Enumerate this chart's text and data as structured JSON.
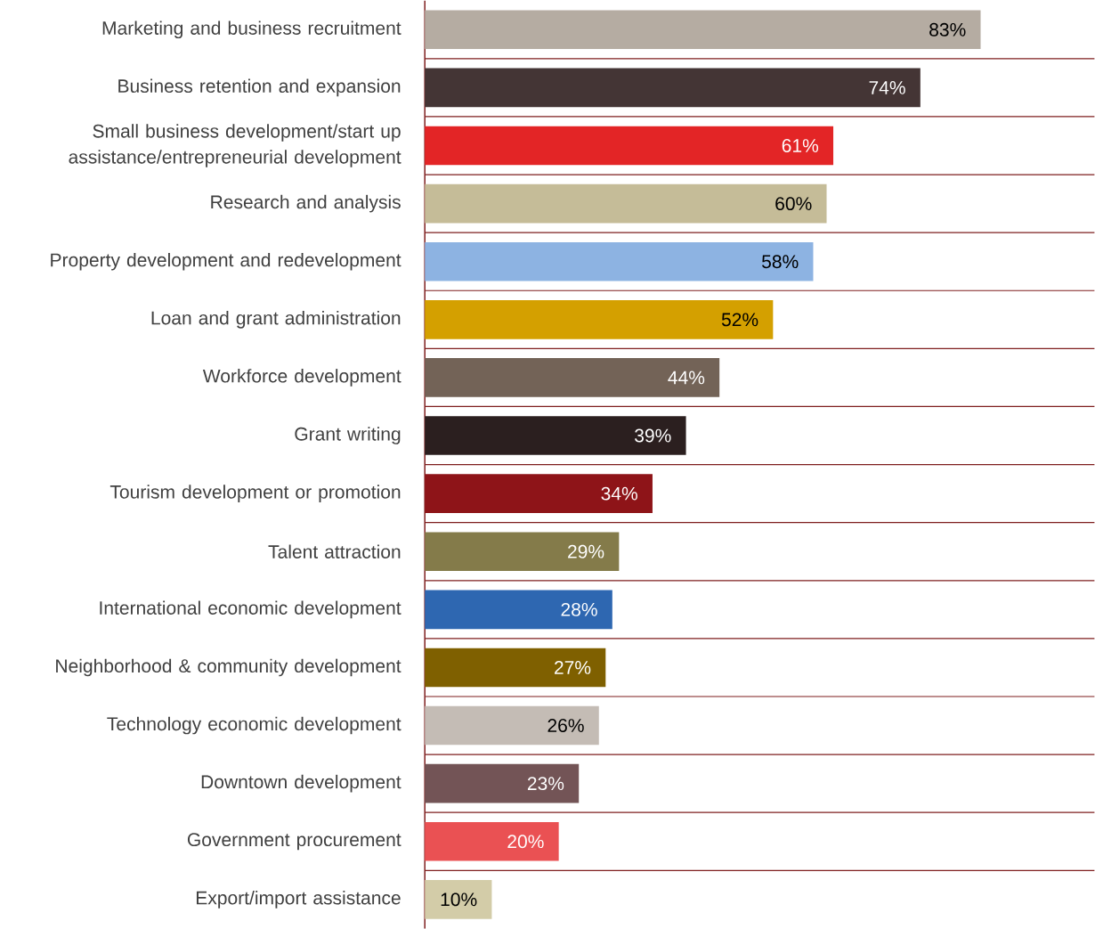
{
  "chart_data": {
    "type": "bar",
    "orientation": "horizontal",
    "tick_labels": "y",
    "grid": "y",
    "xlim": [
      0,
      100
    ],
    "categories": [
      "Marketing and business recruitment",
      "Business retention and expansion",
      "Small business development/start up assistance/entrepreneurial development",
      "Research and analysis",
      "Property development and redevelopment",
      "Loan and grant administration",
      "Workforce development",
      "Grant writing",
      "Tourism development or promotion",
      "Talent attraction",
      "International economic development",
      "Neighborhood & community development",
      "Technology economic development",
      "Downtown development",
      "Government procurement",
      "Export/import assistance"
    ],
    "values": [
      83,
      74,
      61,
      60,
      58,
      52,
      44,
      39,
      34,
      29,
      28,
      27,
      26,
      23,
      20,
      10
    ],
    "value_labels": [
      "83%",
      "74%",
      "61%",
      "60%",
      "58%",
      "52%",
      "44%",
      "39%",
      "34%",
      "29%",
      "28%",
      "27%",
      "26%",
      "23%",
      "20%",
      "10%"
    ],
    "colors": [
      "#b5aca2",
      "#443535",
      "#e32526",
      "#c5bc98",
      "#8db3e2",
      "#d4a000",
      "#736357",
      "#2b1f1f",
      "#8e1418",
      "#847b4a",
      "#2e67b1",
      "#7f6000",
      "#c4bcb5",
      "#735456",
      "#ea5153",
      "#d3cca8"
    ]
  }
}
